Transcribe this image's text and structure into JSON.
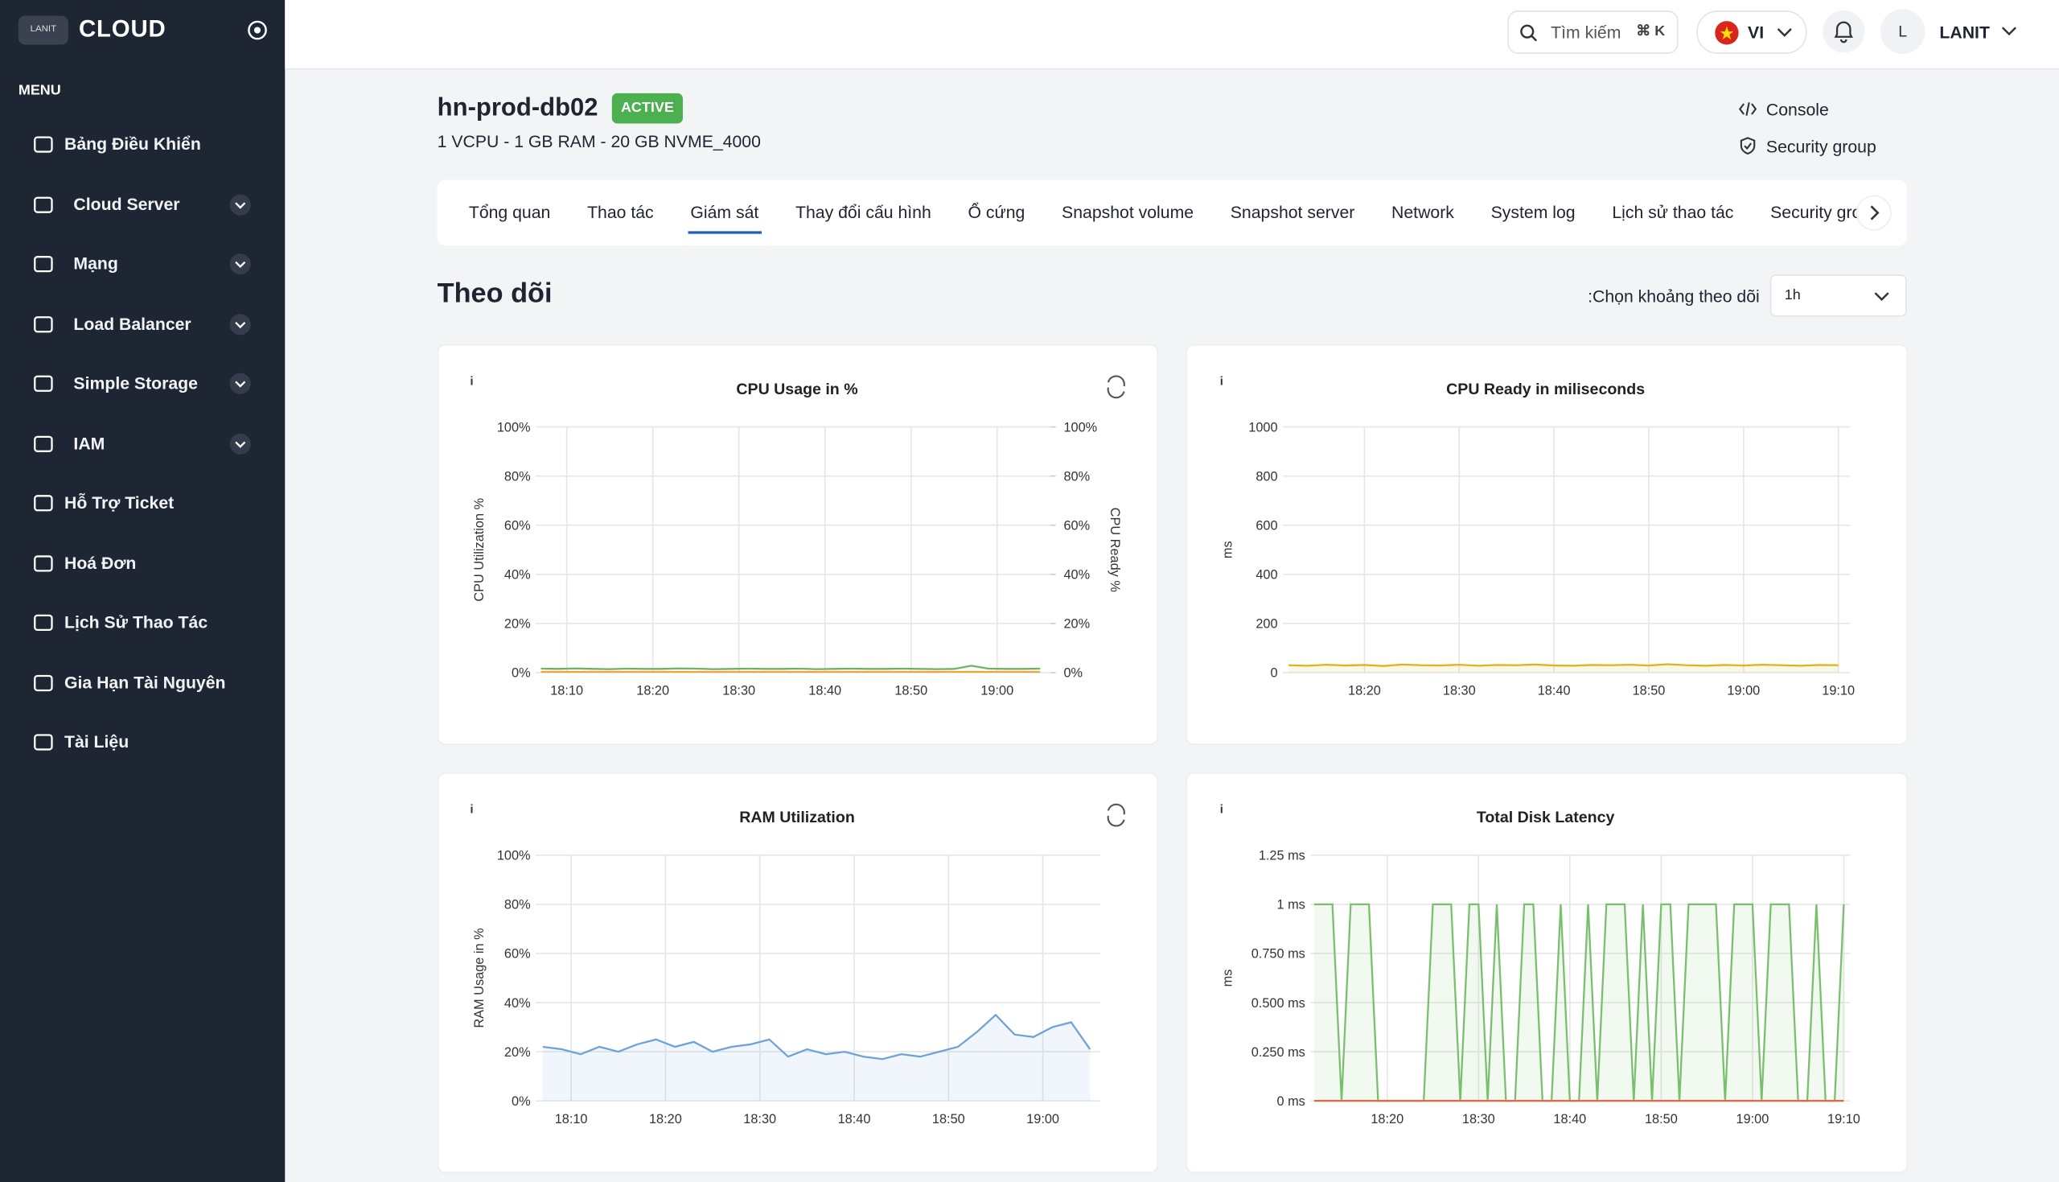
{
  "sidebar": {
    "logo": "LANIT",
    "brand": "CLOUD",
    "menu_label": "MENU",
    "items": [
      {
        "label": "Bảng Điều Khiển",
        "expandable": false
      },
      {
        "label": "Cloud Server",
        "expandable": true
      },
      {
        "label": "Mạng",
        "expandable": true
      },
      {
        "label": "Load Balancer",
        "expandable": true
      },
      {
        "label": "Simple Storage",
        "expandable": true
      },
      {
        "label": "IAM",
        "expandable": true
      },
      {
        "label": "Hỗ Trợ Ticket",
        "expandable": false
      },
      {
        "label": "Hoá Đơn",
        "expandable": false
      },
      {
        "label": "Lịch Sử Thao Tác",
        "expandable": false
      },
      {
        "label": "Gia Hạn Tài Nguyên",
        "expandable": false
      },
      {
        "label": "Tài Liệu",
        "expandable": false
      }
    ]
  },
  "header": {
    "search": "Tìm kiếm",
    "shortcut": "⌘ K",
    "language": "VI",
    "avatar": "L",
    "user": "LANIT"
  },
  "server": {
    "name": "hn-prod-db02",
    "status": "ACTIVE",
    "spec": "1 VCPU - 1 GB RAM - 20 GB NVME_4000",
    "actions": [
      "Console",
      "Security group"
    ]
  },
  "tabs": {
    "items": [
      "Tổng quan",
      "Thao tác",
      "Giám sát",
      "Thay đổi cấu hình",
      "Ổ cứng",
      "Snapshot volume",
      "Snapshot server",
      "Network",
      "System log",
      "Lịch sử thao tác",
      "Security group"
    ],
    "active": 2
  },
  "section": {
    "title": "Theo dõi",
    "range_label": "Chọn khoảng theo dõi:",
    "range_value": "1h"
  },
  "chart_data": [
    {
      "type": "line",
      "title": "CPU Usage in %",
      "ylabel": "CPU Utilization %",
      "y2label": "CPU Ready %",
      "grid": true,
      "x": [
        7,
        9,
        11,
        13,
        15,
        17,
        19,
        21,
        23,
        25,
        27,
        29,
        31,
        33,
        35,
        37,
        39,
        41,
        43,
        45,
        47,
        49,
        51,
        53,
        55,
        57,
        59,
        61,
        63,
        65
      ],
      "xlim": [
        6.4,
        66.2
      ],
      "ylim": [
        0,
        100
      ],
      "y2lim": [
        0,
        100
      ],
      "xticks": [
        {
          "value": 10,
          "label": "18:10"
        },
        {
          "value": 20,
          "label": "18:20"
        },
        {
          "value": 30,
          "label": "18:30"
        },
        {
          "value": 40,
          "label": "18:40"
        },
        {
          "value": 50,
          "label": "18:50"
        },
        {
          "value": 60,
          "label": "19:00"
        }
      ],
      "yticks": [
        {
          "value": 0,
          "label": "0%"
        },
        {
          "value": 20,
          "label": "20%"
        },
        {
          "value": 40,
          "label": "40%"
        },
        {
          "value": 60,
          "label": "60%"
        },
        {
          "value": 80,
          "label": "80%"
        },
        {
          "value": 100,
          "label": "100%"
        }
      ],
      "y2ticks": [
        {
          "value": 0,
          "label": "0%"
        },
        {
          "value": 20,
          "label": "20%"
        },
        {
          "value": 40,
          "label": "40%"
        },
        {
          "value": 60,
          "label": "60%"
        },
        {
          "value": 80,
          "label": "80%"
        },
        {
          "value": 100,
          "label": "100%"
        }
      ],
      "series": [
        {
          "color": "#6fb264",
          "fill": false,
          "values": [
            1.6,
            1.5,
            1.7,
            1.5,
            1.4,
            1.6,
            1.5,
            1.5,
            1.7,
            1.6,
            1.4,
            1.5,
            1.6,
            1.5,
            1.5,
            1.6,
            1.4,
            1.5,
            1.6,
            1.5,
            1.5,
            1.6,
            1.5,
            1.4,
            1.5,
            2.8,
            1.6,
            1.5,
            1.5,
            1.6
          ]
        },
        {
          "color": "#f2a33a",
          "fill": false,
          "axis": "y2",
          "values": [
            0.3,
            0.3,
            0.3,
            0.3,
            0.3,
            0.3,
            0.3,
            0.3,
            0.3,
            0.3,
            0.3,
            0.3,
            0.3,
            0.3,
            0.3,
            0.3,
            0.3,
            0.3,
            0.3,
            0.3,
            0.3,
            0.3,
            0.3,
            0.3,
            0.3,
            0.3,
            0.3,
            0.3,
            0.3,
            0.3
          ]
        }
      ]
    },
    {
      "type": "line",
      "title": "CPU Ready in miliseconds",
      "ylabel": "ms",
      "grid": true,
      "x": [
        12,
        14,
        16,
        18,
        20,
        22,
        24,
        26,
        28,
        30,
        32,
        34,
        36,
        38,
        40,
        42,
        44,
        46,
        48,
        50,
        52,
        54,
        56,
        58,
        60,
        62,
        64,
        66,
        68,
        70
      ],
      "xlim": [
        11.4,
        71.25
      ],
      "ylim": [
        0,
        1000
      ],
      "xticks": [
        {
          "value": 20,
          "label": "18:20"
        },
        {
          "value": 30,
          "label": "18:30"
        },
        {
          "value": 40,
          "label": "18:40"
        },
        {
          "value": 50,
          "label": "18:50"
        },
        {
          "value": 60,
          "label": "19:00"
        },
        {
          "value": 70,
          "label": "19:10"
        }
      ],
      "yticks": [
        0,
        200,
        400,
        600,
        800,
        1000
      ],
      "series": [
        {
          "color": "#dcb422",
          "fill": true,
          "values": [
            30,
            28,
            32,
            29,
            31,
            27,
            33,
            30,
            29,
            32,
            28,
            31,
            30,
            33,
            29,
            28,
            31,
            30,
            32,
            29,
            34,
            30,
            28,
            31,
            29,
            32,
            30,
            28,
            31,
            30
          ]
        }
      ]
    },
    {
      "type": "line",
      "title": "RAM Utilization",
      "ylabel": "RAM Usage in %",
      "grid": true,
      "x": [
        7,
        9,
        11,
        13,
        15,
        17,
        19,
        21,
        23,
        25,
        27,
        29,
        31,
        33,
        35,
        37,
        39,
        41,
        43,
        45,
        47,
        49,
        51,
        53,
        55,
        57,
        59,
        61,
        63,
        65
      ],
      "xlim": [
        6.25,
        66.1
      ],
      "ylim": [
        0,
        100
      ],
      "xticks": [
        {
          "value": 10,
          "label": "18:10"
        },
        {
          "value": 20,
          "label": "18:20"
        },
        {
          "value": 30,
          "label": "18:30"
        },
        {
          "value": 40,
          "label": "18:40"
        },
        {
          "value": 50,
          "label": "18:50"
        },
        {
          "value": 60,
          "label": "19:00"
        }
      ],
      "yticks": [
        {
          "value": 0,
          "label": "0%"
        },
        {
          "value": 20,
          "label": "20%"
        },
        {
          "value": 40,
          "label": "40%"
        },
        {
          "value": 60,
          "label": "60%"
        },
        {
          "value": 80,
          "label": "80%"
        },
        {
          "value": 100,
          "label": "100%"
        }
      ],
      "series": [
        {
          "color": "#6fa3d8",
          "fill": true,
          "values": [
            22,
            21,
            19,
            22,
            20,
            23,
            25,
            22,
            24,
            20,
            22,
            23,
            25,
            18,
            21,
            19,
            20,
            18,
            17,
            19,
            18,
            20,
            22,
            28,
            35,
            27,
            26,
            30,
            32,
            21
          ]
        }
      ]
    },
    {
      "type": "line",
      "title": "Total Disk Latency",
      "ylabel": "ms",
      "grid": true,
      "x": [
        12,
        13,
        14,
        15,
        16,
        17,
        18,
        19,
        20,
        21,
        22,
        23,
        24,
        25,
        26,
        27,
        28,
        29,
        30,
        31,
        32,
        33,
        34,
        35,
        36,
        37,
        38,
        39,
        40,
        41,
        42,
        43,
        44,
        45,
        46,
        47,
        48,
        49,
        50,
        51,
        52,
        53,
        54,
        55,
        56,
        57,
        58,
        59,
        60,
        61,
        62,
        63,
        64,
        65,
        66,
        67,
        68,
        69,
        70
      ],
      "xlim": [
        11.6,
        70.7
      ],
      "ylim": [
        0,
        1.25
      ],
      "xticks": [
        {
          "value": 20,
          "label": "18:20"
        },
        {
          "value": 30,
          "label": "18:30"
        },
        {
          "value": 40,
          "label": "18:40"
        },
        {
          "value": 50,
          "label": "18:50"
        },
        {
          "value": 60,
          "label": "19:00"
        },
        {
          "value": 70,
          "label": "19:10"
        }
      ],
      "yticks": [
        {
          "value": 0,
          "label": "0 ms"
        },
        {
          "value": 0.25,
          "label": "0.250 ms"
        },
        {
          "value": 0.5,
          "label": "0.500 ms"
        },
        {
          "value": 0.75,
          "label": "0.750 ms"
        },
        {
          "value": 1,
          "label": "1 ms"
        },
        {
          "value": 1.25,
          "label": "1.25 ms"
        }
      ],
      "series": [
        {
          "color": "#79c06e",
          "fill": true,
          "values": [
            1,
            1,
            1,
            0,
            1,
            1,
            1,
            0,
            0,
            0,
            0,
            0,
            0,
            1,
            1,
            1,
            0,
            1,
            1,
            0,
            1,
            0,
            0,
            1,
            1,
            0,
            0,
            1,
            0,
            0,
            1,
            0,
            1,
            1,
            1,
            0,
            1,
            0,
            1,
            1,
            0,
            1,
            1,
            1,
            1,
            0,
            1,
            1,
            1,
            0,
            1,
            1,
            1,
            0,
            0,
            1,
            0,
            0,
            1
          ]
        },
        {
          "color": "#f0643c",
          "fill": false,
          "values": [
            0,
            0,
            0,
            0,
            0,
            0,
            0,
            0,
            0,
            0,
            0,
            0,
            0,
            0,
            0,
            0,
            0,
            0,
            0,
            0,
            0,
            0,
            0,
            0,
            0,
            0,
            0,
            0,
            0,
            0,
            0,
            0,
            0,
            0,
            0,
            0,
            0,
            0,
            0,
            0,
            0,
            0,
            0,
            0,
            0,
            0,
            0,
            0,
            0,
            0,
            0,
            0,
            0,
            0,
            0,
            0,
            0,
            0,
            0
          ]
        }
      ]
    }
  ]
}
